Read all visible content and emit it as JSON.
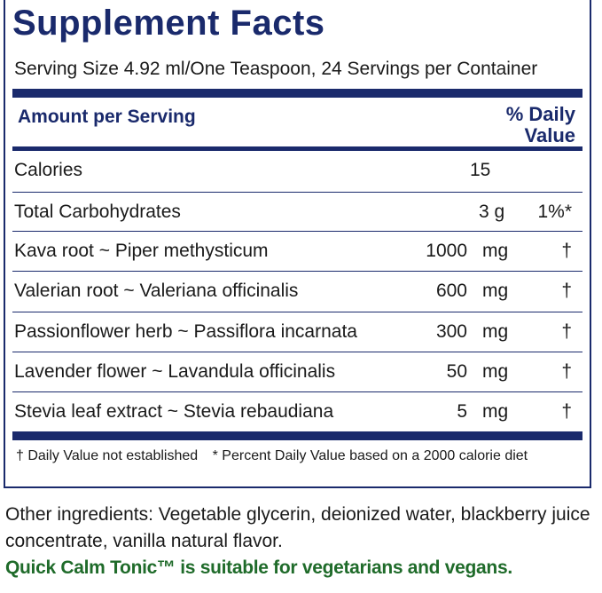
{
  "title": "Supplement Facts",
  "serving": "Serving Size 4.92 ml/One Teaspoon, 24 Servings per Container",
  "header": {
    "amount": "Amount per Serving",
    "dv_line1": "% Daily",
    "dv_line2": "Value"
  },
  "calories": {
    "label": "Calories",
    "value": "15"
  },
  "carbs": {
    "label": "Total Carbohydrates",
    "amount": "3 g",
    "dv": "1%*"
  },
  "ingredients": [
    {
      "name": "Kava root ~ Piper methysticum",
      "amount": "1000",
      "unit": "mg",
      "dv": "†"
    },
    {
      "name": "Valerian root ~ Valeriana officinalis",
      "amount": "600",
      "unit": "mg",
      "dv": "†"
    },
    {
      "name": "Passionflower herb ~ Passiflora incarnata",
      "amount": "300",
      "unit": "mg",
      "dv": "†"
    },
    {
      "name": "Lavender flower ~ Lavandula officinalis",
      "amount": "50",
      "unit": "mg",
      "dv": "†"
    },
    {
      "name": "Stevia leaf extract ~ Stevia rebaudiana",
      "amount": "5",
      "unit": "mg",
      "dv": "†"
    }
  ],
  "footnote1": "†  Daily Value not established",
  "footnote2": "* Percent Daily Value based on a 2000 calorie diet",
  "other_ingredients": "Other ingredients: Vegetable glycerin, deionized water, blackberry juice concentrate, vanilla natural flavor.",
  "vegan_note": "Quick Calm Tonic™ is suitable for vegetarians and vegans.",
  "colors": {
    "navy": "#1a2a6c",
    "green": "#1f6b2a"
  }
}
